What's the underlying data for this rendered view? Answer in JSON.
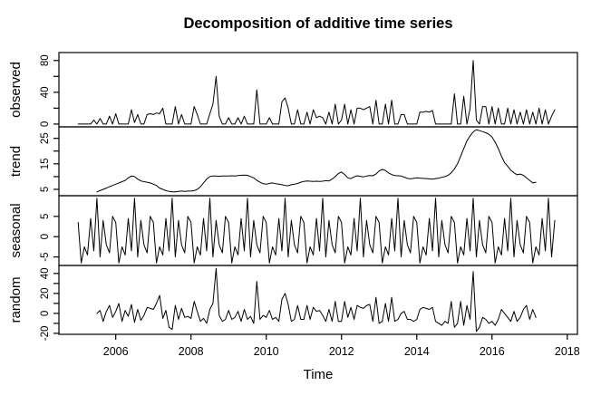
{
  "title": "Decomposition of additive time series",
  "colors": {
    "line": "#000000",
    "text": "#000000",
    "background": "#ffffff"
  },
  "chart_data": {
    "type": "line",
    "title": "Decomposition of additive time series",
    "xlabel": "Time",
    "grid": false,
    "legend": "none",
    "x_ticks": [
      2006,
      2008,
      2010,
      2012,
      2014,
      2016,
      2018
    ],
    "xlim": [
      2004.49,
      2018.27
    ],
    "points_per_year": 12,
    "panels": [
      {
        "id": "observed",
        "ylabel": "observed",
        "ylim": [
          -3.5,
          90
        ],
        "yticks": [
          0,
          20,
          40,
          60,
          80
        ],
        "ytick_labels": [
          "0",
          "",
          "40",
          "",
          "80"
        ],
        "x_start_year": 2005.0,
        "values": [
          0,
          0,
          0,
          0,
          0,
          5,
          0,
          7,
          0,
          0,
          10,
          0,
          13,
          0,
          0,
          0,
          0,
          18,
          2,
          12,
          0,
          0,
          12,
          13,
          12,
          14,
          13,
          20,
          0,
          0,
          0,
          22,
          0,
          12,
          0,
          0,
          0,
          22,
          12,
          0,
          0,
          0,
          13,
          25,
          60,
          10,
          0,
          0,
          8,
          0,
          0,
          8,
          0,
          10,
          0,
          0,
          0,
          43,
          0,
          0,
          0,
          8,
          0,
          0,
          0,
          28,
          33,
          20,
          0,
          0,
          18,
          0,
          0,
          15,
          0,
          18,
          8,
          10,
          8,
          0,
          15,
          0,
          25,
          0,
          5,
          25,
          0,
          18,
          0,
          20,
          20,
          18,
          20,
          22,
          0,
          30,
          0,
          0,
          25,
          0,
          30,
          0,
          0,
          12,
          12,
          0,
          0,
          0,
          0,
          15,
          15,
          16,
          15,
          17,
          0,
          0,
          0,
          0,
          0,
          0,
          38,
          0,
          0,
          35,
          0,
          20,
          80,
          5,
          0,
          22,
          22,
          0,
          22,
          0,
          20,
          0,
          0,
          20,
          0,
          18,
          0,
          15,
          0,
          18,
          0,
          15,
          0,
          20,
          0,
          18,
          0,
          10,
          18
        ]
      },
      {
        "id": "trend",
        "ylabel": "trend",
        "ylim": [
          2.5,
          29.5
        ],
        "yticks": [
          5,
          10,
          15,
          20,
          25
        ],
        "ytick_labels": [
          "5",
          "",
          "15",
          "",
          "25"
        ],
        "x_start_year": 2005.5,
        "values": [
          4,
          4.5,
          5,
          5.5,
          6,
          6.5,
          7,
          7.5,
          8,
          8.5,
          9.5,
          10.2,
          10,
          9,
          8.3,
          8,
          7.8,
          7.5,
          7,
          6.5,
          5.5,
          5,
          4.5,
          4.2,
          4,
          4,
          4.2,
          4.3,
          4.2,
          4.3,
          4.3,
          4.5,
          5,
          6,
          7.5,
          9,
          10,
          10.2,
          10.2,
          10.1,
          10.2,
          10.2,
          10.2,
          10.3,
          10.2,
          10.4,
          10.5,
          10.6,
          10.5,
          10,
          9.5,
          8.5,
          7.8,
          7.2,
          7,
          7.3,
          7.5,
          7.2,
          7,
          6.8,
          6.5,
          6.4,
          6.8,
          7,
          7.3,
          7.8,
          8.1,
          8.3,
          8.2,
          8.1,
          8.2,
          8.1,
          8.2,
          8.4,
          8.3,
          9,
          10,
          11.2,
          11.8,
          10.8,
          9.5,
          9.2,
          9.9,
          10.3,
          10.1,
          9.9,
          10.2,
          10.4,
          10.3,
          11,
          12.2,
          12.8,
          12.4,
          11.4,
          10.8,
          10.4,
          10.3,
          10.2,
          9.8,
          9.3,
          9.1,
          9.3,
          9.5,
          9.4,
          9.3,
          9.2,
          9.1,
          9,
          9.2,
          9.4,
          9.7,
          10,
          10.5,
          11.5,
          13,
          15,
          18,
          21,
          24,
          26,
          27.5,
          28.4,
          28,
          27.6,
          27.2,
          26.6,
          25.5,
          23.5,
          21,
          18,
          15.5,
          14,
          12.5,
          11.5,
          10.7,
          11,
          10.5,
          9.5,
          8.5,
          7.5,
          7.8
        ]
      },
      {
        "id": "seasonal",
        "ylabel": "seasonal",
        "ylim": [
          -7.1,
          10.1
        ],
        "yticks": [
          -5,
          0,
          5
        ],
        "ytick_labels": [
          "-5",
          "0",
          "5"
        ],
        "x_start_year": 2005.0,
        "pattern": [
          3.5,
          -6.5,
          -2.5,
          -4.5,
          4.5,
          -3.5,
          9.5,
          -5,
          4,
          -2,
          -4,
          5
        ]
      },
      {
        "id": "random",
        "ylabel": "random",
        "ylim": [
          -21,
          48
        ],
        "yticks": [
          -20,
          -10,
          0,
          10,
          20,
          30,
          40
        ],
        "ytick_labels": [
          "-20",
          "",
          "0",
          "",
          "20",
          "",
          "40"
        ],
        "x_start_year": 2005.5,
        "values": [
          0,
          3,
          -8,
          2,
          8,
          -4,
          2,
          10,
          -8,
          3,
          -3,
          9,
          -9,
          4,
          -7,
          -2,
          6,
          5,
          4,
          10,
          18,
          -5,
          3,
          -14,
          -16,
          8,
          -6,
          5,
          -4,
          -3,
          -5,
          12,
          2,
          -8,
          -5,
          -10,
          4,
          10,
          45,
          -2,
          -8,
          -6,
          3,
          -6,
          -4,
          2,
          -8,
          4,
          -6,
          -3,
          -10,
          32,
          -6,
          -2,
          -4,
          3,
          -6,
          -4,
          -8,
          14,
          20,
          9,
          -8,
          -6,
          8,
          -6,
          -6,
          8,
          -6,
          6,
          2,
          3,
          -2,
          -8,
          4,
          -8,
          12,
          -8,
          -8,
          12,
          -4,
          6,
          -6,
          8,
          6,
          5,
          8,
          9,
          -8,
          16,
          -10,
          -8,
          10,
          -8,
          16,
          -8,
          -6,
          0,
          2,
          -6,
          -6,
          -8,
          -6,
          4,
          6,
          5,
          4,
          6,
          -8,
          -10,
          -12,
          -8,
          -10,
          12,
          -14,
          -10,
          12,
          -12,
          8,
          -6,
          42,
          -18,
          -14,
          -4,
          -6,
          -10,
          -8,
          -12,
          -6,
          4,
          0,
          -4,
          -8,
          2,
          -8,
          -4,
          4,
          8,
          -6,
          4,
          -4
        ]
      }
    ]
  }
}
